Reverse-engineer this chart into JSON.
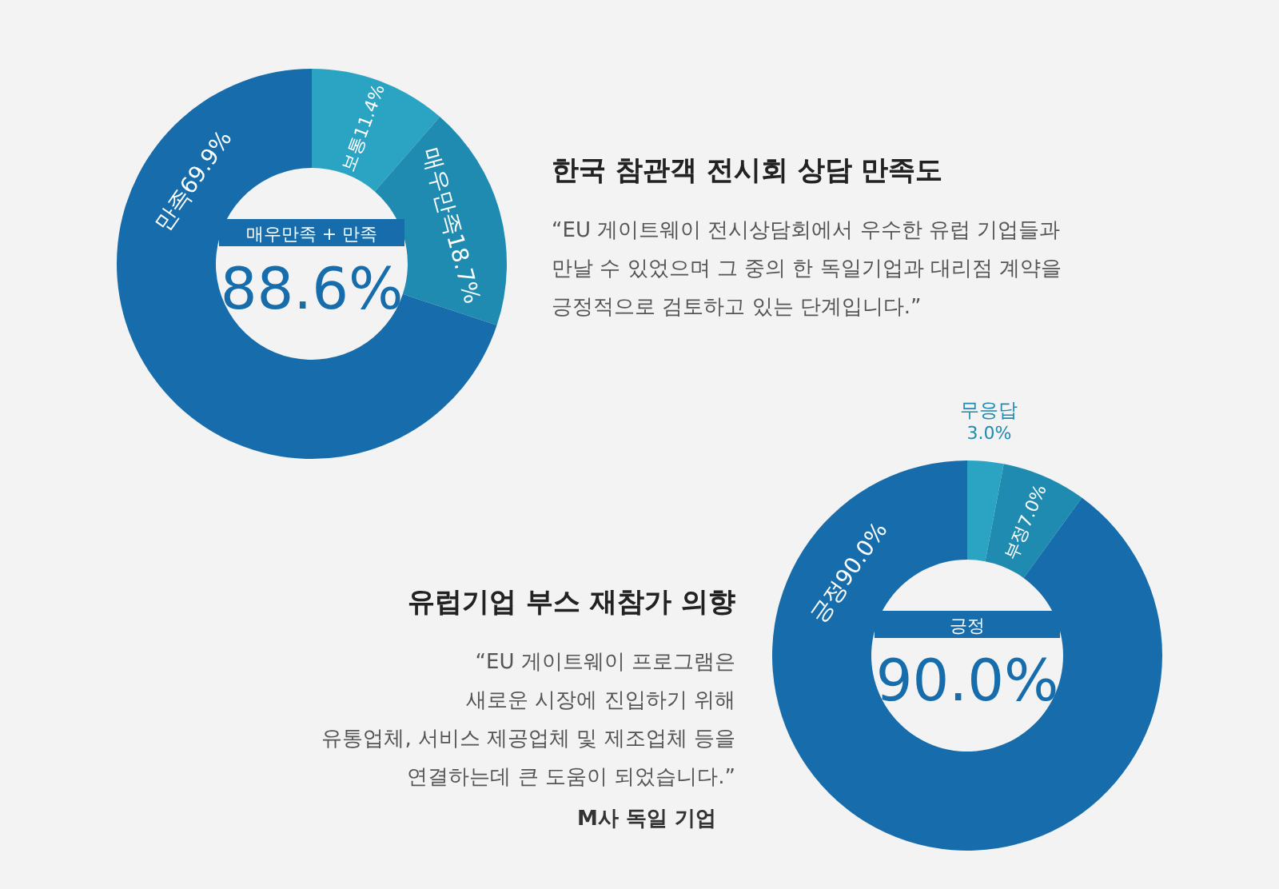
{
  "chart_data": [
    {
      "type": "donut",
      "title": "한국 참관객 전시회 상담 만족도",
      "subtitle": "“EU 게이트웨이 전시상담회에서 우수한 유럽 기업들과\n만날 수 있었으며 그 중의 한 독일기업과 대리점 계약을\n긍정적으로 검토하고 있는 단계입니다.”",
      "categories": [
        "보통",
        "매우만족",
        "만족"
      ],
      "values": [
        11.4,
        18.7,
        69.9
      ],
      "value_labels": [
        "11.4%",
        "18.7%",
        "69.9%"
      ],
      "colors": [
        "#2ba3c2",
        "#1f8bb0",
        "#176dab"
      ],
      "annotations": [
        "매우만족 + 만족",
        "88.6%"
      ]
    },
    {
      "type": "donut",
      "title": "유럽기업 부스 재참가 의향",
      "subtitle": "“EU 게이트웨이 프로그램은\n새로운 시장에 진입하기 위해\n유통업체, 서비스 제공업체 및 제조업체 등을\n연결하는데 큰 도움이 되었습니다.”",
      "categories": [
        "무응답",
        "부정",
        "긍정"
      ],
      "values": [
        3.0,
        7.0,
        90.0
      ],
      "value_labels": [
        "3.0%",
        "7.0%",
        "90.0%"
      ],
      "colors": [
        "#2ba3c2",
        "#1f8bb0",
        "#176dab"
      ],
      "annotations": [
        "긍정",
        "90.0%",
        "M사 독일 기업"
      ]
    }
  ]
}
